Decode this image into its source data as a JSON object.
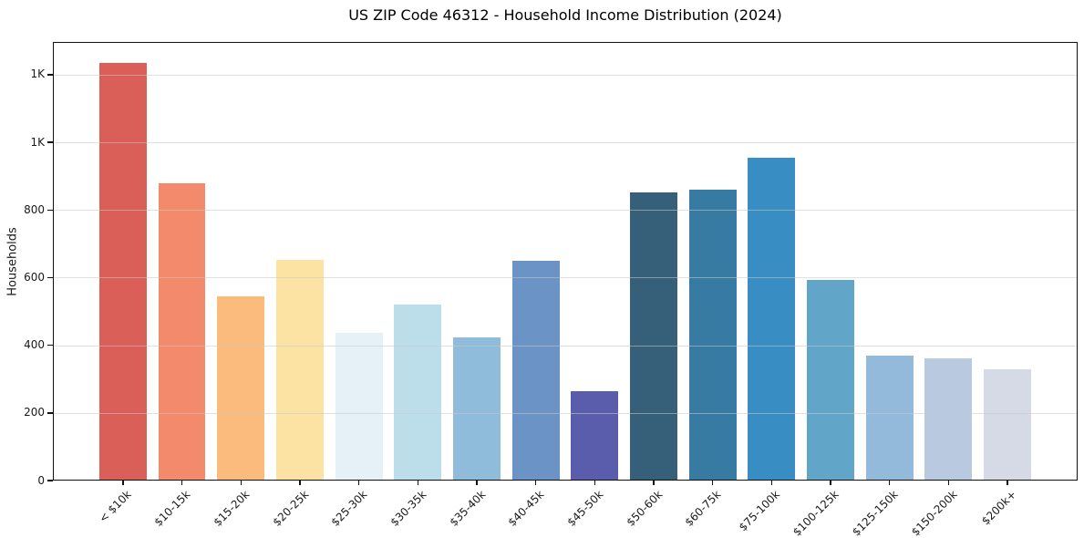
{
  "chart_data": {
    "type": "bar",
    "title": "US ZIP Code 46312 - Household Income Distribution (2024)",
    "xlabel": "",
    "ylabel": "Households",
    "categories": [
      "< $10k",
      "$10-15k",
      "$15-20k",
      "$20-25k",
      "$25-30k",
      "$30-35k",
      "$35-40k",
      "$40-45k",
      "$45-50k",
      "$50-60k",
      "$60-75k",
      "$75-100k",
      "$100-125k",
      "$125-150k",
      "$150-200k",
      "$200k+"
    ],
    "values": [
      1236,
      878,
      545,
      653,
      436,
      520,
      423,
      650,
      264,
      853,
      859,
      955,
      594,
      370,
      361,
      328
    ],
    "bar_colors": [
      "#d95f58",
      "#f48a6c",
      "#fbbb7c",
      "#fce2a3",
      "#e6f1f7",
      "#bcdeea",
      "#90bcdc",
      "#6b93c6",
      "#5a5dab",
      "#36607a",
      "#377ba3",
      "#388dc2",
      "#61a6c9",
      "#93badb",
      "#b9c9e0",
      "#d6d9e6"
    ],
    "ylim": [
      0,
      1297
    ],
    "ytick_values": [
      0,
      200,
      400,
      600,
      800,
      1000,
      1200
    ],
    "ytick_labels": [
      "0",
      "200",
      "400",
      "600",
      "800",
      "1K",
      "1K"
    ],
    "grid": "horizontal-on-top",
    "grid_color": "#e6e6e6",
    "axis_color": "#111111",
    "text_color": "#1a1a1a",
    "legend": "none"
  }
}
